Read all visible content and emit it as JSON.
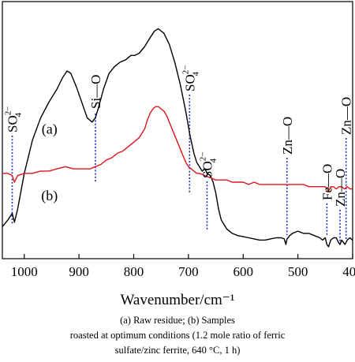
{
  "chart_data": {
    "type": "line",
    "xlabel": "Wavenumber/cm⁻¹",
    "ylabel": "",
    "xlim": [
      1040,
      400
    ],
    "x_axis_reversed": true,
    "y_axis_visible": false,
    "grid": false,
    "x_ticks": [
      1000,
      900,
      800,
      700,
      600,
      500,
      400
    ],
    "series": [
      {
        "name": "(a)",
        "color": "#000000",
        "x": [
          1040,
          1030,
          1022,
          1018,
          1012,
          1000,
          985,
          970,
          955,
          940,
          930,
          922,
          915,
          905,
          895,
          885,
          876,
          870,
          865,
          855,
          845,
          835,
          825,
          815,
          805,
          798,
          790,
          780,
          770,
          762,
          755,
          745,
          735,
          725,
          715,
          705,
          698,
          690,
          685,
          680,
          675,
          670,
          666,
          660,
          655,
          650,
          645,
          640,
          630,
          620,
          610,
          600,
          590,
          580,
          570,
          560,
          550,
          540,
          530,
          525,
          522,
          520,
          518,
          515,
          510,
          500,
          490,
          480,
          470,
          460,
          455,
          450,
          447,
          444,
          440,
          435,
          430,
          426,
          423,
          420,
          417,
          414,
          410,
          405,
          400
        ],
        "y": [
          0.08,
          0.11,
          0.14,
          0.1,
          0.16,
          0.32,
          0.47,
          0.57,
          0.64,
          0.7,
          0.75,
          0.78,
          0.77,
          0.71,
          0.64,
          0.57,
          0.55,
          0.57,
          0.61,
          0.7,
          0.77,
          0.8,
          0.82,
          0.83,
          0.85,
          0.85,
          0.86,
          0.89,
          0.93,
          0.96,
          0.97,
          0.95,
          0.9,
          0.82,
          0.72,
          0.6,
          0.5,
          0.41,
          0.37,
          0.35,
          0.33,
          0.34,
          0.32,
          0.31,
          0.28,
          0.23,
          0.16,
          0.11,
          0.07,
          0.05,
          0.04,
          0.035,
          0.03,
          0.025,
          0.02,
          0.02,
          0.025,
          0.03,
          0.03,
          0.025,
          0.0,
          0.025,
          0.03,
          0.04,
          0.05,
          0.06,
          0.05,
          0.05,
          0.04,
          0.03,
          0.02,
          0.03,
          0.0,
          -0.01,
          0.02,
          0.03,
          0.03,
          0.01,
          0.0,
          0.02,
          0.01,
          0.0,
          0.02,
          0.03,
          0.02
        ]
      },
      {
        "name": "(b)",
        "color": "#e0141e",
        "x": [
          1040,
          1030,
          1022,
          1018,
          1012,
          1000,
          985,
          970,
          955,
          940,
          925,
          910,
          895,
          880,
          870,
          860,
          850,
          840,
          830,
          820,
          810,
          800,
          790,
          780,
          775,
          770,
          765,
          760,
          755,
          750,
          745,
          740,
          735,
          730,
          725,
          720,
          715,
          710,
          705,
          700,
          695,
          690,
          685,
          680,
          670,
          660,
          650,
          640,
          630,
          620,
          610,
          600,
          590,
          580,
          570,
          560,
          550,
          540,
          530,
          522,
          520,
          518,
          510,
          500,
          490,
          480,
          470,
          460,
          450,
          447,
          444,
          440,
          435,
          430,
          425,
          420,
          415,
          410,
          405,
          400
        ],
        "y": [
          0.32,
          0.32,
          0.31,
          0.28,
          0.31,
          0.32,
          0.32,
          0.33,
          0.33,
          0.34,
          0.35,
          0.34,
          0.34,
          0.34,
          0.35,
          0.36,
          0.38,
          0.39,
          0.41,
          0.42,
          0.44,
          0.46,
          0.48,
          0.52,
          0.56,
          0.59,
          0.61,
          0.62,
          0.62,
          0.61,
          0.6,
          0.58,
          0.55,
          0.52,
          0.49,
          0.46,
          0.43,
          0.4,
          0.37,
          0.35,
          0.34,
          0.33,
          0.32,
          0.32,
          0.31,
          0.3,
          0.29,
          0.29,
          0.29,
          0.28,
          0.28,
          0.28,
          0.27,
          0.28,
          0.27,
          0.27,
          0.27,
          0.27,
          0.27,
          0.27,
          0.265,
          0.27,
          0.27,
          0.27,
          0.27,
          0.26,
          0.26,
          0.26,
          0.26,
          0.25,
          0.24,
          0.26,
          0.26,
          0.25,
          0.26,
          0.26,
          0.25,
          0.26,
          0.25,
          0.25
        ]
      }
    ],
    "series_labels": [
      {
        "text": "(a)",
        "x": 1000,
        "y": 0.52
      },
      {
        "text": "(b)",
        "x": 1000,
        "y": 0.22
      }
    ],
    "annotations": [
      {
        "base": "SO",
        "sub": "4",
        "sup": "2−",
        "x": 1022
      },
      {
        "base": "Si—O",
        "x": 870
      },
      {
        "base": "SO",
        "sub": "4",
        "sup": "2−",
        "x": 698
      },
      {
        "base": "SO",
        "sub": "4",
        "sup": "2−",
        "x": 666
      },
      {
        "base": "Zn—O",
        "x": 520
      },
      {
        "base": "Fe—O",
        "x": 447
      },
      {
        "base": "Zn—O",
        "x": 423
      },
      {
        "base": "Zn—O",
        "x": 412
      }
    ],
    "marker_line_color": "#1f2fbf"
  },
  "caption": {
    "line1": "(a) Raw residue; (b) Samples",
    "line2": "roasted at optimum conditions (1.2 mole ratio of ferric",
    "line3": "sulfate/zinc ferrite, 640 °C, 1 h)"
  }
}
